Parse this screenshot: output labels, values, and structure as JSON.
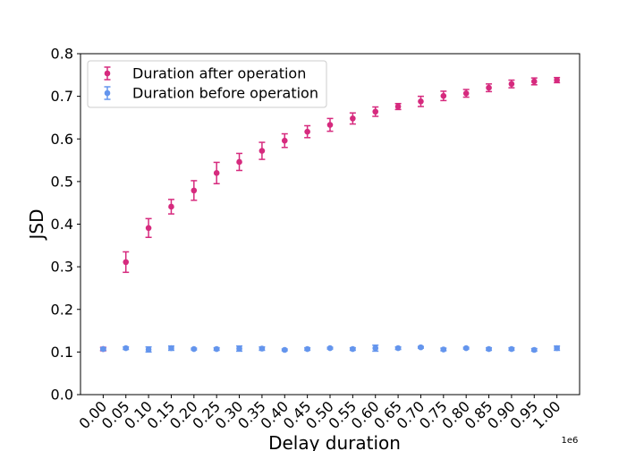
{
  "chart_data": {
    "type": "scatter",
    "title": "",
    "xlabel": "Delay duration",
    "ylabel": "JSD",
    "x_offset_label": "1e6",
    "xlim": [
      -0.05,
      1.05
    ],
    "ylim": [
      0.0,
      0.8
    ],
    "x_ticks": [
      "0.00",
      "0.05",
      "0.10",
      "0.15",
      "0.20",
      "0.25",
      "0.30",
      "0.35",
      "0.40",
      "0.45",
      "0.50",
      "0.55",
      "0.60",
      "0.65",
      "0.70",
      "0.75",
      "0.80",
      "0.85",
      "0.90",
      "0.95",
      "1.00"
    ],
    "y_ticks": [
      "0.0",
      "0.1",
      "0.2",
      "0.3",
      "0.4",
      "0.5",
      "0.6",
      "0.7",
      "0.8"
    ],
    "grid": false,
    "legend_position": "upper-left",
    "x": [
      0.0,
      0.05,
      0.1,
      0.15,
      0.2,
      0.25,
      0.3,
      0.35,
      0.4,
      0.45,
      0.5,
      0.55,
      0.6,
      0.65,
      0.7,
      0.75,
      0.8,
      0.85,
      0.9,
      0.95,
      1.0
    ],
    "series": [
      {
        "name": "Duration after operation",
        "color": "#d62a7e",
        "values": [
          0.107,
          0.311,
          0.391,
          0.441,
          0.479,
          0.52,
          0.546,
          0.572,
          0.596,
          0.617,
          0.633,
          0.648,
          0.664,
          0.676,
          0.688,
          0.701,
          0.707,
          0.72,
          0.729,
          0.735,
          0.738
        ],
        "errors": [
          0.004,
          0.024,
          0.022,
          0.017,
          0.023,
          0.025,
          0.02,
          0.02,
          0.016,
          0.014,
          0.015,
          0.013,
          0.011,
          0.007,
          0.012,
          0.011,
          0.009,
          0.009,
          0.009,
          0.008,
          0.006
        ]
      },
      {
        "name": "Duration before operation",
        "color": "#6495ed",
        "values": [
          0.107,
          0.109,
          0.106,
          0.109,
          0.107,
          0.107,
          0.108,
          0.108,
          0.105,
          0.107,
          0.109,
          0.107,
          0.109,
          0.109,
          0.111,
          0.106,
          0.109,
          0.107,
          0.107,
          0.105,
          0.109
        ],
        "errors": [
          0.003,
          0.003,
          0.006,
          0.005,
          0.002,
          0.003,
          0.006,
          0.004,
          0.002,
          0.003,
          0.002,
          0.003,
          0.007,
          0.003,
          0.002,
          0.003,
          0.002,
          0.003,
          0.003,
          0.003,
          0.005
        ]
      }
    ]
  }
}
